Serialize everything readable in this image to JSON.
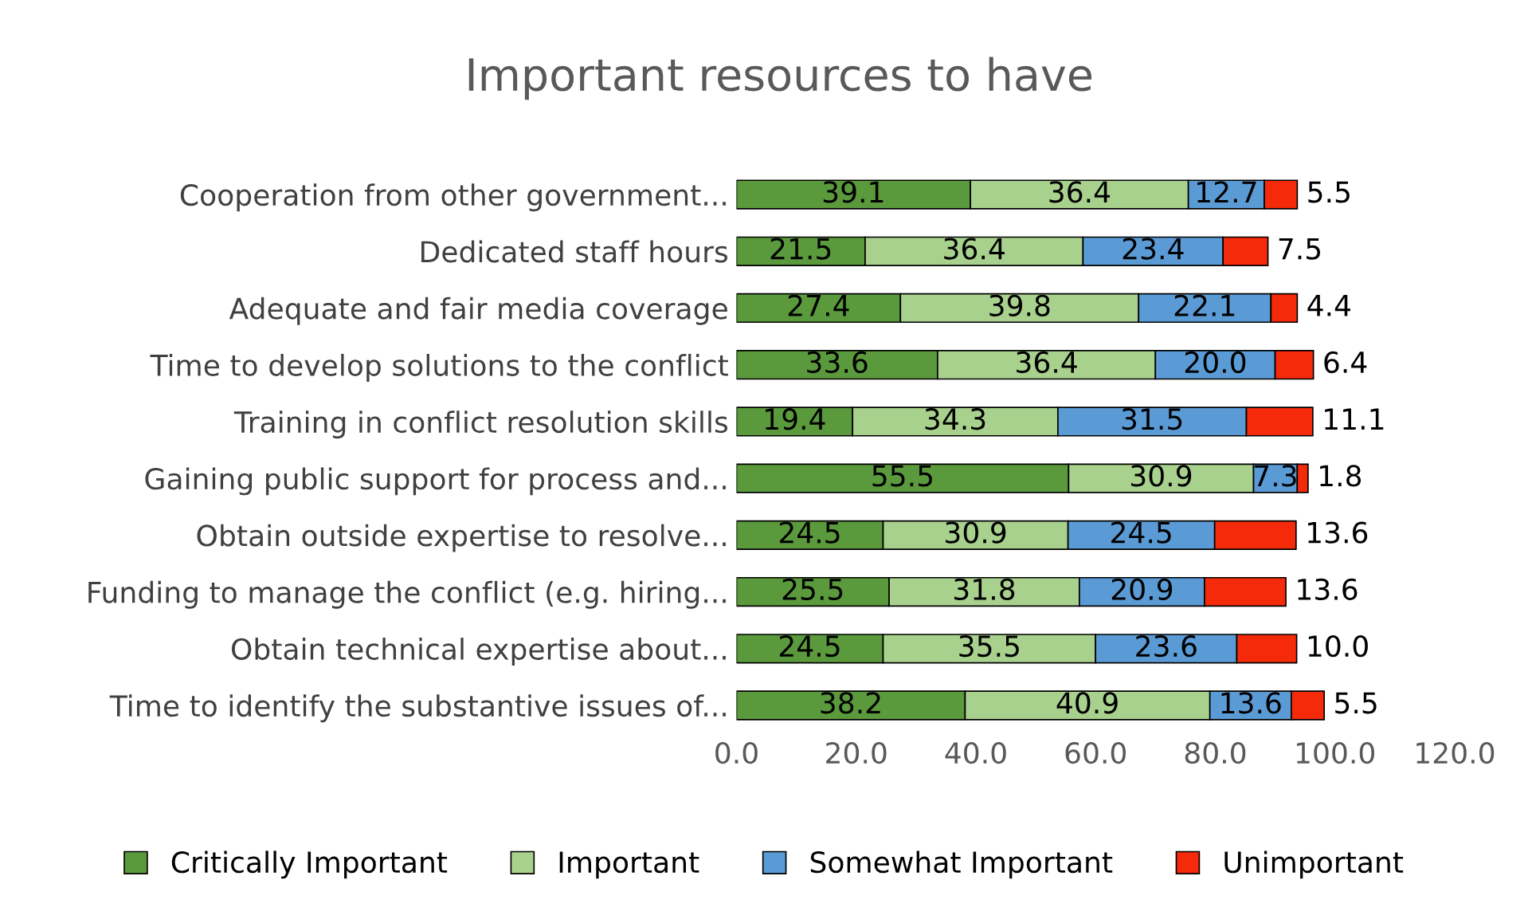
{
  "chart_data": {
    "type": "bar",
    "title": "Important resources to have",
    "orientation": "horizontal",
    "stacked": true,
    "categories": [
      "Cooperation from other government...",
      "Dedicated staff hours",
      "Adequate and fair media coverage",
      "Time to develop solutions to the conflict",
      "Training in conflict resolution skills",
      "Gaining public support for process and...",
      "Obtain outside expertise to resolve...",
      "Funding to manage the conflict (e.g. hiring...",
      "Obtain technical expertise about...",
      "Time to identify the substantive issues of..."
    ],
    "series": [
      {
        "name": "Critically Important",
        "color": "#5b9a3c",
        "values": [
          39.1,
          21.5,
          27.4,
          33.6,
          19.4,
          55.5,
          24.5,
          25.5,
          24.5,
          38.2
        ],
        "value_labels": [
          "39.1",
          "21.5",
          "27.4",
          "33.6",
          "19.4",
          "55.5",
          "24.5",
          "25.5",
          "24.5",
          "38.2"
        ]
      },
      {
        "name": "Important",
        "color": "#a9d18e",
        "values": [
          36.4,
          36.4,
          39.8,
          36.4,
          34.3,
          30.9,
          30.9,
          31.8,
          35.5,
          40.9
        ],
        "value_labels": [
          "36.4",
          "36.4",
          "39.8",
          "36.4",
          "34.3",
          "30.9",
          "30.9",
          "31.8",
          "35.5",
          "40.9"
        ]
      },
      {
        "name": "Somewhat Important",
        "color": "#5b9bd5",
        "values": [
          12.7,
          23.4,
          22.1,
          20,
          31.5,
          7.3,
          24.5,
          20.9,
          23.6,
          13.6
        ],
        "value_labels": [
          "12.7",
          "23.4",
          "22.1",
          "20.0",
          "31.5",
          "7.3",
          "24.5",
          "20.9",
          "23.6",
          "13.6"
        ]
      },
      {
        "name": "Unimportant",
        "color": "#f52a0a",
        "values": [
          5.5,
          7.5,
          4.4,
          6.4,
          11.1,
          1.8,
          13.6,
          13.6,
          10,
          5.5
        ],
        "value_labels": [
          "5.5",
          "7.5",
          "4.4",
          "6.4",
          "11.1",
          "1.8",
          "13.6",
          "13.6",
          "10.0",
          "5.5"
        ]
      }
    ],
    "xlim": [
      0,
      120
    ],
    "xticks": [
      {
        "value": 0,
        "label": "0.0"
      },
      {
        "value": 20,
        "label": "20.0"
      },
      {
        "value": 40,
        "label": "40.0"
      },
      {
        "value": 60,
        "label": "60.0"
      },
      {
        "value": 80,
        "label": "80.0"
      },
      {
        "value": 100,
        "label": "100.0"
      },
      {
        "value": 120,
        "label": "120.0"
      }
    ],
    "legend": "bottom",
    "grid": false
  }
}
